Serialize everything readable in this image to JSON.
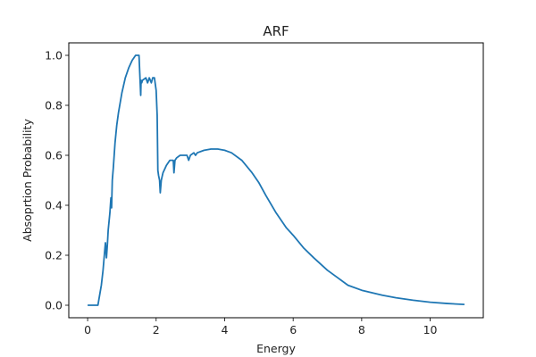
{
  "chart_data": {
    "type": "line",
    "title": "ARF",
    "xlabel": "Energy",
    "ylabel": "Absoprtion Probability",
    "xlim": [
      -0.55,
      11.55
    ],
    "ylim": [
      -0.05,
      1.05
    ],
    "xticks": [
      0,
      2,
      4,
      6,
      8,
      10
    ],
    "yticks": [
      0.0,
      0.2,
      0.4,
      0.6,
      0.8,
      1.0
    ],
    "grid": false,
    "series": [
      {
        "color": "#1f77b4",
        "x": [
          0.0,
          0.3,
          0.35,
          0.4,
          0.45,
          0.5,
          0.52,
          0.55,
          0.58,
          0.6,
          0.65,
          0.68,
          0.7,
          0.72,
          0.75,
          0.8,
          0.85,
          0.9,
          1.0,
          1.1,
          1.2,
          1.3,
          1.4,
          1.5,
          1.55,
          1.56,
          1.58,
          1.6,
          1.7,
          1.75,
          1.8,
          1.83,
          1.86,
          1.9,
          1.95,
          2.0,
          2.03,
          2.05,
          2.07,
          2.1,
          2.12,
          2.15,
          2.2,
          2.3,
          2.4,
          2.5,
          2.52,
          2.55,
          2.6,
          2.7,
          2.8,
          2.9,
          2.95,
          3.0,
          3.1,
          3.15,
          3.2,
          3.4,
          3.6,
          3.8,
          4.0,
          4.2,
          4.5,
          4.8,
          5.0,
          5.2,
          5.5,
          5.8,
          6.0,
          6.3,
          6.6,
          7.0,
          7.3,
          7.6,
          8.0,
          8.3,
          8.6,
          9.0,
          9.5,
          10.0,
          10.5,
          11.0
        ],
        "y": [
          0.0,
          0.0,
          0.04,
          0.08,
          0.14,
          0.22,
          0.25,
          0.19,
          0.25,
          0.3,
          0.37,
          0.43,
          0.39,
          0.5,
          0.55,
          0.65,
          0.72,
          0.77,
          0.85,
          0.91,
          0.95,
          0.98,
          1.0,
          1.0,
          0.84,
          0.9,
          0.89,
          0.9,
          0.91,
          0.89,
          0.91,
          0.9,
          0.89,
          0.91,
          0.91,
          0.86,
          0.76,
          0.54,
          0.52,
          0.5,
          0.45,
          0.5,
          0.53,
          0.56,
          0.58,
          0.58,
          0.53,
          0.58,
          0.59,
          0.6,
          0.6,
          0.6,
          0.58,
          0.6,
          0.61,
          0.6,
          0.61,
          0.62,
          0.625,
          0.625,
          0.62,
          0.61,
          0.58,
          0.53,
          0.49,
          0.44,
          0.37,
          0.31,
          0.28,
          0.23,
          0.19,
          0.14,
          0.11,
          0.08,
          0.06,
          0.05,
          0.04,
          0.03,
          0.02,
          0.012,
          0.007,
          0.003
        ]
      }
    ]
  }
}
